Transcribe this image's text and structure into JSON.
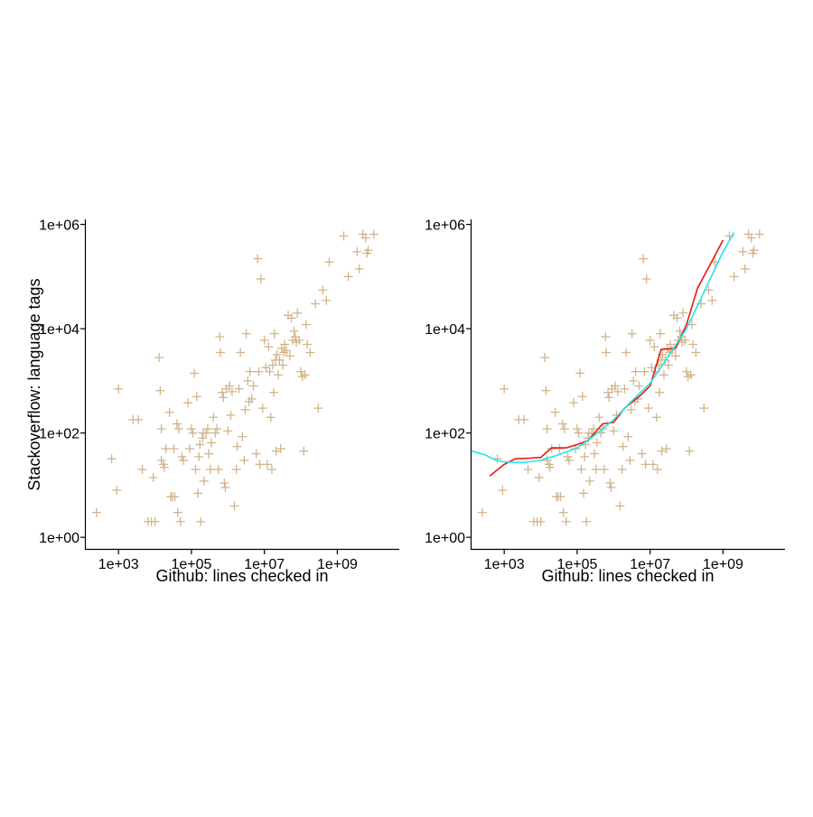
{
  "chart_data": [
    {
      "type": "scatter",
      "title": "",
      "xlabel": "Github: lines checked in",
      "ylabel": "Stackoverflow: language tags",
      "x_scale": "log10",
      "y_scale": "log10",
      "xlim": [
        120,
        50000000000
      ],
      "ylim": [
        0.6,
        1200000
      ],
      "xticks": [
        1000,
        100000,
        10000000,
        1000000000
      ],
      "xtick_labels": [
        "1e+03",
        "1e+05",
        "1e+07",
        "1e+09"
      ],
      "yticks": [
        1,
        100,
        10000,
        1000000
      ],
      "ytick_labels": [
        "1e+00",
        "1e+02",
        "1e+04",
        "1e+06"
      ],
      "grid": false,
      "marker": "plus",
      "colors": {
        "points": "#d2b48c"
      },
      "points": [
        [
          250,
          3
        ],
        [
          650,
          32
        ],
        [
          900,
          8
        ],
        [
          1000,
          700
        ],
        [
          2500,
          180
        ],
        [
          3500,
          180
        ],
        [
          4500,
          20
        ],
        [
          6500,
          2
        ],
        [
          8000,
          2
        ],
        [
          9000,
          14
        ],
        [
          10000,
          2
        ],
        [
          13000,
          2800
        ],
        [
          14000,
          650
        ],
        [
          15000,
          120
        ],
        [
          15000,
          30
        ],
        [
          17000,
          25
        ],
        [
          18000,
          22
        ],
        [
          20000,
          50
        ],
        [
          25000,
          250
        ],
        [
          27000,
          6
        ],
        [
          30000,
          6
        ],
        [
          33000,
          50
        ],
        [
          35000,
          6
        ],
        [
          40000,
          150
        ],
        [
          42000,
          3
        ],
        [
          45000,
          120
        ],
        [
          50000,
          2
        ],
        [
          55000,
          35
        ],
        [
          60000,
          30
        ],
        [
          80000,
          380
        ],
        [
          90000,
          50
        ],
        [
          100000,
          120
        ],
        [
          110000,
          100
        ],
        [
          120000,
          1400
        ],
        [
          130000,
          20
        ],
        [
          140000,
          500
        ],
        [
          150000,
          7
        ],
        [
          160000,
          35
        ],
        [
          170000,
          60
        ],
        [
          180000,
          2
        ],
        [
          200000,
          80
        ],
        [
          210000,
          100
        ],
        [
          220000,
          12
        ],
        [
          250000,
          100
        ],
        [
          280000,
          120
        ],
        [
          300000,
          40
        ],
        [
          330000,
          20
        ],
        [
          350000,
          65
        ],
        [
          400000,
          200
        ],
        [
          450000,
          100
        ],
        [
          500000,
          120
        ],
        [
          550000,
          20
        ],
        [
          600000,
          7000
        ],
        [
          620000,
          3500
        ],
        [
          700000,
          600
        ],
        [
          750000,
          480
        ],
        [
          800000,
          11
        ],
        [
          850000,
          9
        ],
        [
          900000,
          700
        ],
        [
          1000000,
          110
        ],
        [
          1100000,
          800
        ],
        [
          1200000,
          220
        ],
        [
          1300000,
          620
        ],
        [
          1500000,
          4
        ],
        [
          1700000,
          20
        ],
        [
          1800000,
          55
        ],
        [
          2000000,
          700
        ],
        [
          2200000,
          3500
        ],
        [
          2500000,
          85
        ],
        [
          2800000,
          30
        ],
        [
          3000000,
          280
        ],
        [
          3200000,
          8000
        ],
        [
          3500000,
          1000
        ],
        [
          3800000,
          400
        ],
        [
          4000000,
          1500
        ],
        [
          4500000,
          450
        ],
        [
          5000000,
          800
        ],
        [
          6000000,
          40
        ],
        [
          6500000,
          220000
        ],
        [
          7000000,
          1500
        ],
        [
          7500000,
          25
        ],
        [
          8000000,
          90000
        ],
        [
          9000000,
          300
        ],
        [
          10000000,
          6000
        ],
        [
          11000000,
          1800
        ],
        [
          12000000,
          25
        ],
        [
          13000000,
          4500
        ],
        [
          14000000,
          1500
        ],
        [
          15000000,
          200
        ],
        [
          16000000,
          20
        ],
        [
          17000000,
          2000
        ],
        [
          18000000,
          600
        ],
        [
          19000000,
          8000
        ],
        [
          20000000,
          2500
        ],
        [
          21000000,
          45
        ],
        [
          22000000,
          3200
        ],
        [
          24000000,
          1300
        ],
        [
          26000000,
          2500
        ],
        [
          28000000,
          50
        ],
        [
          30000000,
          4200
        ],
        [
          32000000,
          2000
        ],
        [
          34000000,
          3500
        ],
        [
          36000000,
          5000
        ],
        [
          40000000,
          3800
        ],
        [
          45000000,
          18000
        ],
        [
          50000000,
          3000
        ],
        [
          55000000,
          16000
        ],
        [
          60000000,
          6000
        ],
        [
          65000000,
          9000
        ],
        [
          70000000,
          7000
        ],
        [
          75000000,
          5500
        ],
        [
          80000000,
          20000
        ],
        [
          90000000,
          6000
        ],
        [
          100000000,
          1500
        ],
        [
          110000000,
          1200
        ],
        [
          120000000,
          45
        ],
        [
          130000000,
          1300
        ],
        [
          140000000,
          12000
        ],
        [
          150000000,
          5000
        ],
        [
          180000000,
          3500
        ],
        [
          250000000,
          30000
        ],
        [
          300000000,
          300
        ],
        [
          400000000,
          55000
        ],
        [
          500000000,
          35000
        ],
        [
          600000000,
          190000
        ],
        [
          1500000000,
          600000
        ],
        [
          2000000000,
          100000
        ],
        [
          3500000000,
          300000
        ],
        [
          4000000000,
          140000
        ],
        [
          5000000000,
          650000
        ],
        [
          6000000000,
          550000
        ],
        [
          6500000000,
          280000
        ],
        [
          7000000000,
          320000
        ],
        [
          10000000000,
          650000
        ]
      ]
    },
    {
      "type": "scatter",
      "title": "",
      "xlabel": "Github: lines checked in",
      "ylabel": "",
      "x_scale": "log10",
      "y_scale": "log10",
      "xlim": [
        120,
        50000000000
      ],
      "ylim": [
        0.6,
        1200000
      ],
      "xticks": [
        1000,
        100000,
        10000000,
        1000000000
      ],
      "xtick_labels": [
        "1e+03",
        "1e+05",
        "1e+07",
        "1e+09"
      ],
      "yticks": [
        1,
        100,
        10000,
        1000000
      ],
      "ytick_labels": [
        "1e+00",
        "1e+02",
        "1e+04",
        "1e+06"
      ],
      "grid": false,
      "marker": "plus",
      "colors": {
        "points": "#d2b48c",
        "red_line": "#e8180c",
        "cyan_line": "#22e5e8"
      },
      "points_ref": 0,
      "lines": [
        {
          "color": "#e8180c",
          "points": [
            [
              400,
              15
            ],
            [
              1000,
              25
            ],
            [
              2000,
              32
            ],
            [
              5000,
              33
            ],
            [
              10000,
              34
            ],
            [
              20000,
              52
            ],
            [
              50000,
              52
            ],
            [
              100000,
              60
            ],
            [
              200000,
              72
            ],
            [
              500000,
              150
            ],
            [
              1000000,
              160
            ],
            [
              2000000,
              300
            ],
            [
              5000000,
              500
            ],
            [
              10000000,
              800
            ],
            [
              20000000,
              4000
            ],
            [
              50000000,
              4200
            ],
            [
              100000000,
              12000
            ],
            [
              200000000,
              60000
            ],
            [
              500000000,
              200000
            ],
            [
              1000000000,
              500000
            ]
          ]
        },
        {
          "color": "#22e5e8",
          "points": [
            [
              130,
              45
            ],
            [
              300,
              38
            ],
            [
              600,
              30
            ],
            [
              1000,
              28
            ],
            [
              3000,
              27
            ],
            [
              10000,
              30
            ],
            [
              30000,
              38
            ],
            [
              100000,
              52
            ],
            [
              300000,
              90
            ],
            [
              1000000,
              180
            ],
            [
              3000000,
              400
            ],
            [
              10000000,
              900
            ],
            [
              30000000,
              2800
            ],
            [
              100000000,
              10000
            ],
            [
              300000000,
              50000
            ],
            [
              1000000000,
              300000
            ],
            [
              2000000000,
              700000
            ]
          ]
        }
      ]
    }
  ]
}
